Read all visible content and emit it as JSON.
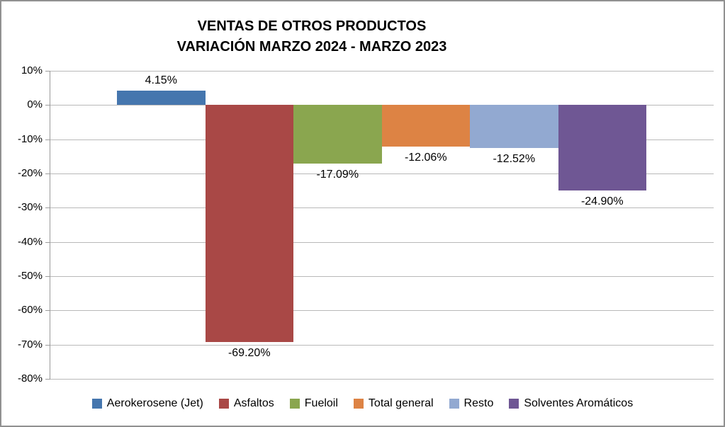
{
  "chart": {
    "title_line1": "VENTAS DE OTROS PRODUCTOS",
    "title_line2": "VARIACIÓN MARZO 2024 - MARZO 2023"
  },
  "chart_data": {
    "type": "bar",
    "title": "VENTAS DE OTROS PRODUCTOS VARIACIÓN MARZO 2024 - MARZO 2023",
    "categories": [
      "Aerokerosene (Jet)",
      "Asfaltos",
      "Fueloil",
      "Total general",
      "Resto",
      "Solventes Aromáticos"
    ],
    "values": [
      4.15,
      -69.2,
      -17.09,
      -12.06,
      -12.52,
      -24.9
    ],
    "data_labels": [
      "4.15%",
      "-69.20%",
      "-17.09%",
      "-12.06%",
      "-12.52%",
      "-24.90%"
    ],
    "colors": [
      "#4576AE",
      "#A94846",
      "#8AA64F",
      "#DD8344",
      "#92A9D1",
      "#6F5794"
    ],
    "xlabel": "",
    "ylabel": "",
    "ylim": [
      -80,
      10
    ],
    "ytick_step": 10,
    "ytick_labels": [
      "10%",
      "0%",
      "-10%",
      "-20%",
      "-30%",
      "-40%",
      "-50%",
      "-60%",
      "-70%",
      "-80%"
    ],
    "grid": true,
    "legend_position": "bottom"
  },
  "ui_colors": {
    "chart_border": "#919191",
    "gridline": "#b9b9b9",
    "axis": "#9a9a9a",
    "background": "#ffffff",
    "text": "#000000"
  }
}
